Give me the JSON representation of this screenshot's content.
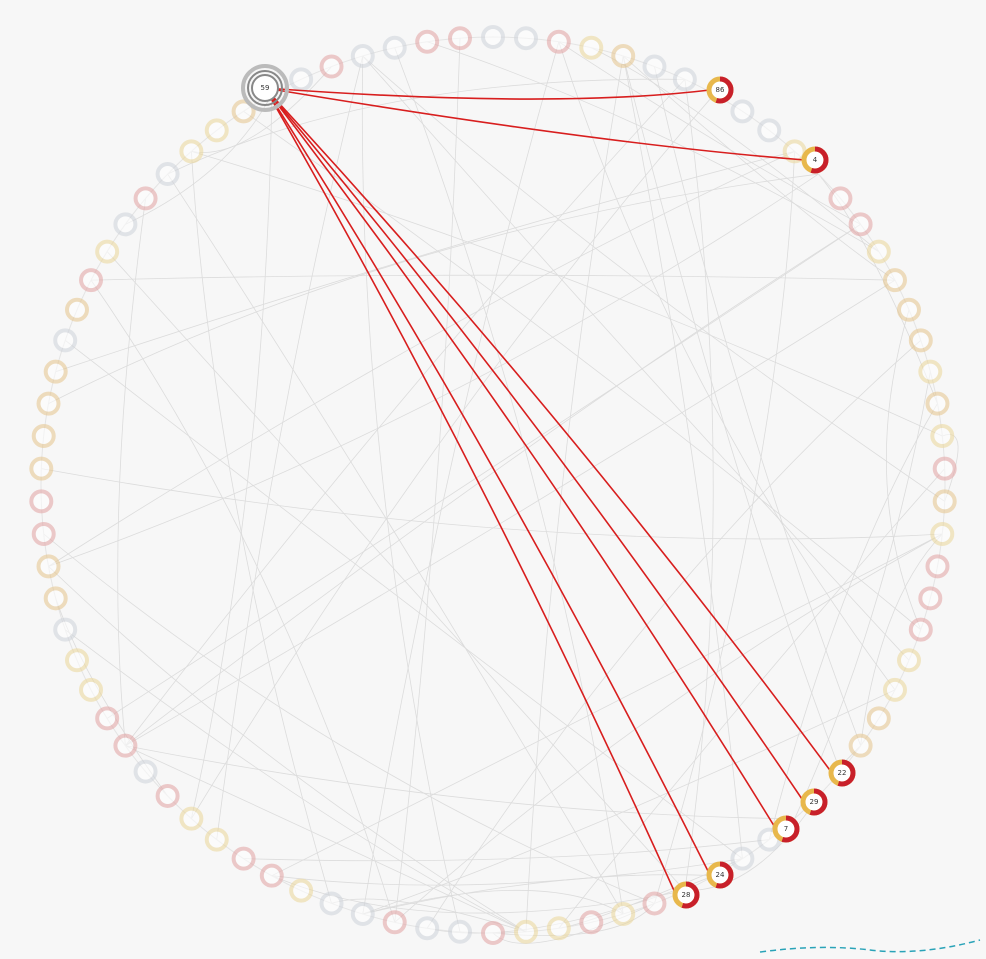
{
  "selected": {
    "label": "59"
  },
  "nodes": [
    {
      "label": "86"
    },
    {
      "label": "4"
    },
    {
      "label": "22"
    },
    {
      "label": "29"
    },
    {
      "label": "7"
    },
    {
      "label": "24"
    },
    {
      "label": "28"
    }
  ]
}
